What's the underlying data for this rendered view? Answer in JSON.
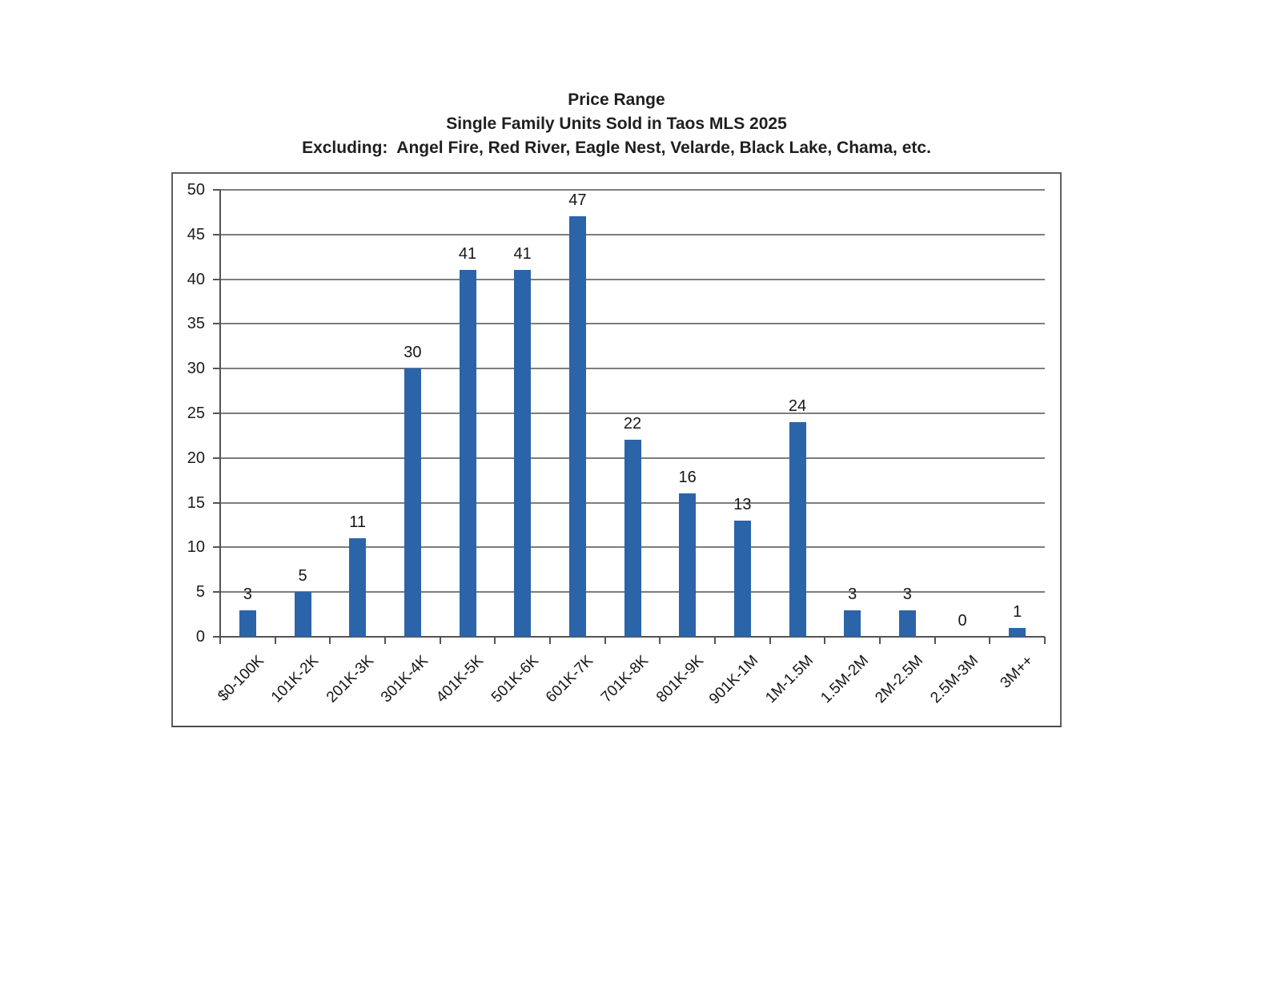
{
  "document": {
    "title_lines": [
      "Price Range",
      "Single Family Units Sold in Taos MLS 2025",
      "Excluding:  Angel Fire, Red River, Eagle Nest, Velarde, Black Lake, Chama, etc."
    ]
  },
  "chart_data": {
    "type": "bar",
    "title": "Price Range",
    "subtitle": "Single Family Units Sold in Taos MLS 2025",
    "note": "Excluding:  Angel Fire, Red River, Eagle Nest, Velarde, Black Lake, Chama, etc.",
    "categories": [
      "$0-100K",
      "101K-2K",
      "201K-3K",
      "301K-4K",
      "401K-5K",
      "501K-6K",
      "601K-7K",
      "701K-8K",
      "801K-9K",
      "901K-1M",
      "1M-1.5M",
      "1.5M-2M",
      "2M-2.5M",
      "2.5M-3M",
      "3M++"
    ],
    "values": [
      3,
      5,
      11,
      30,
      41,
      41,
      47,
      22,
      16,
      13,
      24,
      3,
      3,
      0,
      1
    ],
    "xlabel": "",
    "ylabel": "",
    "ylim": [
      0,
      50
    ],
    "yticks": [
      0,
      5,
      10,
      15,
      20,
      25,
      30,
      35,
      40,
      45,
      50
    ],
    "grid": true,
    "legend": "none",
    "value_labels": true
  },
  "colors": {
    "bar": "#2b64a8",
    "gridline": "#7d7d7d",
    "axis": "#545454",
    "frame": "#606060",
    "text": "#1f1f1f",
    "background": "#ffffff"
  }
}
